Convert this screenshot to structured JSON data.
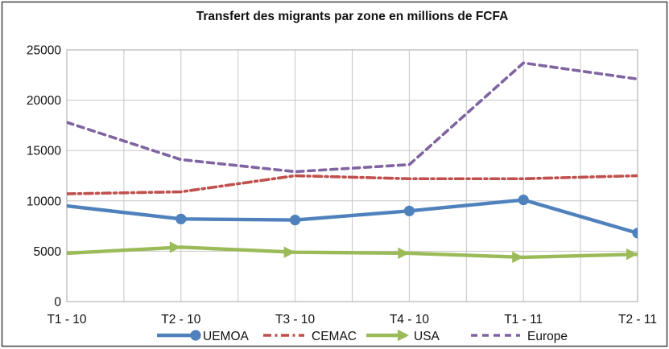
{
  "window": {
    "background": "#FFFFFF"
  },
  "chart_data": {
    "type": "line",
    "title": "Transfert des migrants par zone en millions de FCFA",
    "categories": [
      "T1 - 10",
      "T2 - 10",
      "T3 - 10",
      "T4 - 10",
      "T1 - 11",
      "T2 - 11"
    ],
    "series": [
      {
        "name": "UEMOA",
        "color": "#4F81BD",
        "line_style": "solid",
        "marker": "circle",
        "values": [
          9500,
          8200,
          8100,
          9000,
          10100,
          6800
        ]
      },
      {
        "name": "CEMAC",
        "color": "#C0504D",
        "line_style": "dash-dot",
        "marker": "none",
        "values": [
          10700,
          10900,
          12500,
          12200,
          12200,
          12500
        ]
      },
      {
        "name": "USA",
        "color": "#9BBB59",
        "line_style": "solid",
        "marker": "arrow",
        "values": [
          4800,
          5400,
          4900,
          4800,
          4400,
          4700
        ]
      },
      {
        "name": "Europe",
        "color": "#8064A2",
        "line_style": "dashed",
        "marker": "none",
        "values": [
          17800,
          14100,
          12900,
          13600,
          23700,
          22100
        ]
      }
    ],
    "xlabel": "",
    "ylabel": "",
    "ylim": [
      0,
      25000
    ],
    "ytick_interval": 5000,
    "yticks": [
      "0",
      "5000",
      "10000",
      "15000",
      "20000",
      "25000"
    ],
    "grid": true,
    "legend_position": "bottom",
    "colors": {
      "grid": "#C6C6C6",
      "plot_border": "#A6A6A6",
      "chart_border": "#4D4D4D",
      "text": "#111111"
    }
  }
}
